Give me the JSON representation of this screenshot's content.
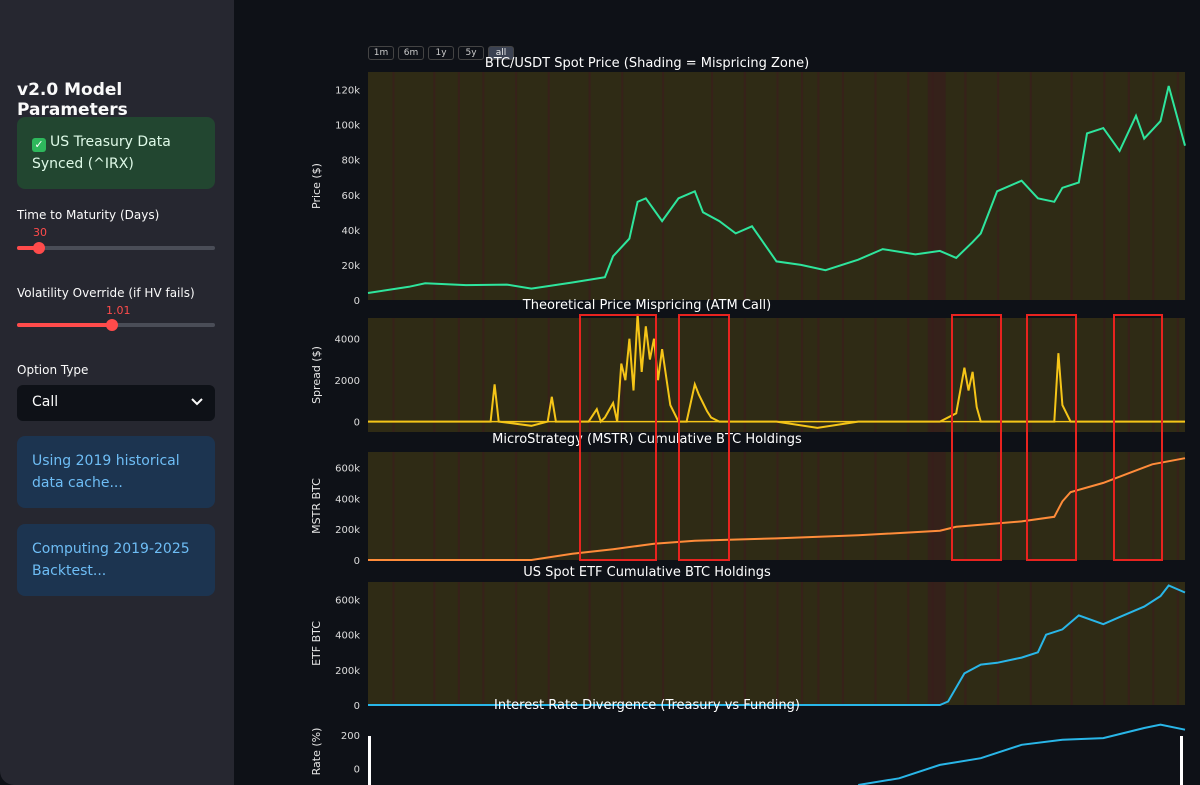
{
  "sidebar": {
    "title": "v2.0 Model Parameters",
    "success_alert": "US Treasury Data Synced (^IRX)",
    "slider_maturity": {
      "label": "Time to Maturity (Days)",
      "value": "30",
      "fraction": 0.11
    },
    "slider_volatility": {
      "label": "Volatility Override (if HV fails)",
      "value": "1.01",
      "fraction": 0.48
    },
    "option_type": {
      "label": "Option Type",
      "selected": "Call"
    },
    "info_alert_1": "Using 2019 historical data cache...",
    "info_alert_2": "Computing 2019-2025 Backtest..."
  },
  "rangeselector": {
    "buttons": [
      "1m",
      "6m",
      "1y",
      "5y",
      "all"
    ],
    "active": "all"
  },
  "chart_data": [
    {
      "type": "line",
      "title": "BTC/USDT Spot Price (Shading = Mispricing Zone)",
      "ylabel": "Price ($)",
      "ylim": [
        0,
        130000
      ],
      "yticks": [
        "0",
        "20k",
        "40k",
        "60k",
        "80k",
        "100k",
        "120k"
      ],
      "color": "#2ee59d",
      "x": [
        0,
        0.05,
        0.07,
        0.12,
        0.17,
        0.2,
        0.25,
        0.29,
        0.3,
        0.32,
        0.33,
        0.34,
        0.36,
        0.38,
        0.4,
        0.41,
        0.43,
        0.45,
        0.47,
        0.5,
        0.53,
        0.56,
        0.6,
        0.63,
        0.67,
        0.7,
        0.72,
        0.74,
        0.75,
        0.77,
        0.8,
        0.82,
        0.84,
        0.85,
        0.87,
        0.88,
        0.9,
        0.92,
        0.94,
        0.95,
        0.97,
        0.98,
        1.0
      ],
      "values": [
        4000,
        7500,
        9500,
        8500,
        8800,
        6500,
        10000,
        13000,
        25000,
        35000,
        56000,
        58000,
        45000,
        58000,
        62000,
        50000,
        45000,
        38000,
        42000,
        22000,
        20000,
        17000,
        23000,
        29000,
        26000,
        28000,
        24000,
        33000,
        38000,
        62000,
        68000,
        58000,
        56000,
        64000,
        67000,
        95000,
        98000,
        85000,
        105000,
        92000,
        102000,
        122000,
        88000
      ]
    },
    {
      "type": "line",
      "title": "Theoretical Price Mispricing (ATM Call)",
      "ylabel": "Spread ($)",
      "ylim": [
        -500,
        5000
      ],
      "yticks": [
        "0",
        "2000",
        "4000"
      ],
      "color": "#f5c518",
      "x": [
        0,
        0.15,
        0.155,
        0.16,
        0.2,
        0.22,
        0.225,
        0.23,
        0.27,
        0.28,
        0.285,
        0.29,
        0.3,
        0.305,
        0.31,
        0.315,
        0.32,
        0.325,
        0.33,
        0.335,
        0.34,
        0.345,
        0.35,
        0.355,
        0.36,
        0.37,
        0.38,
        0.39,
        0.4,
        0.405,
        0.41,
        0.415,
        0.42,
        0.43,
        0.44,
        0.5,
        0.55,
        0.6,
        0.7,
        0.72,
        0.73,
        0.735,
        0.74,
        0.745,
        0.75,
        0.76,
        0.8,
        0.84,
        0.845,
        0.85,
        0.86,
        0.9,
        0.95,
        1.0
      ],
      "values": [
        0,
        0,
        1800,
        0,
        -200,
        0,
        1200,
        0,
        0,
        600,
        0,
        200,
        900,
        0,
        2800,
        2000,
        4000,
        1500,
        5200,
        2400,
        4600,
        3000,
        4000,
        2000,
        3500,
        800,
        0,
        0,
        1800,
        1300,
        900,
        500,
        200,
        0,
        0,
        0,
        -300,
        0,
        0,
        400,
        2600,
        1500,
        2400,
        700,
        0,
        0,
        0,
        0,
        3300,
        800,
        0,
        0,
        0,
        0
      ]
    },
    {
      "type": "line",
      "title": "MicroStrategy (MSTR) Cumulative BTC Holdings",
      "ylabel": "MSTR BTC",
      "ylim": [
        0,
        700000
      ],
      "yticks": [
        "0",
        "200k",
        "400k",
        "600k"
      ],
      "color": "#ff8c3a",
      "x": [
        0,
        0.2,
        0.25,
        0.3,
        0.35,
        0.4,
        0.5,
        0.6,
        0.7,
        0.72,
        0.8,
        0.84,
        0.85,
        0.86,
        0.9,
        0.93,
        0.96,
        1.0
      ],
      "values": [
        0,
        0,
        40000,
        70000,
        105000,
        125000,
        140000,
        160000,
        190000,
        215000,
        250000,
        280000,
        380000,
        440000,
        500000,
        560000,
        620000,
        660000
      ]
    },
    {
      "type": "line",
      "title": "US Spot ETF Cumulative BTC Holdings",
      "ylabel": "ETF BTC",
      "ylim": [
        0,
        700000
      ],
      "yticks": [
        "0",
        "200k",
        "400k",
        "600k"
      ],
      "color": "#29b6e8",
      "x": [
        0,
        0.7,
        0.71,
        0.73,
        0.75,
        0.77,
        0.8,
        0.82,
        0.83,
        0.85,
        0.87,
        0.9,
        0.92,
        0.95,
        0.97,
        0.98,
        1.0
      ],
      "values": [
        0,
        0,
        20000,
        180000,
        230000,
        240000,
        270000,
        300000,
        400000,
        430000,
        510000,
        460000,
        500000,
        560000,
        620000,
        680000,
        640000
      ]
    },
    {
      "type": "line",
      "title": "Interest Rate Divergence (Treasury vs Funding)",
      "ylabel": "Rate (%)",
      "ylim": [
        -100,
        300
      ],
      "yticks": [
        "0",
        "200"
      ],
      "color": "#29b6e8",
      "x": [
        0.6,
        0.65,
        0.7,
        0.75,
        0.8,
        0.85,
        0.9,
        0.95,
        0.97,
        1.0
      ],
      "values": [
        -100,
        -60,
        20,
        60,
        140,
        170,
        180,
        240,
        260,
        230
      ]
    }
  ]
}
